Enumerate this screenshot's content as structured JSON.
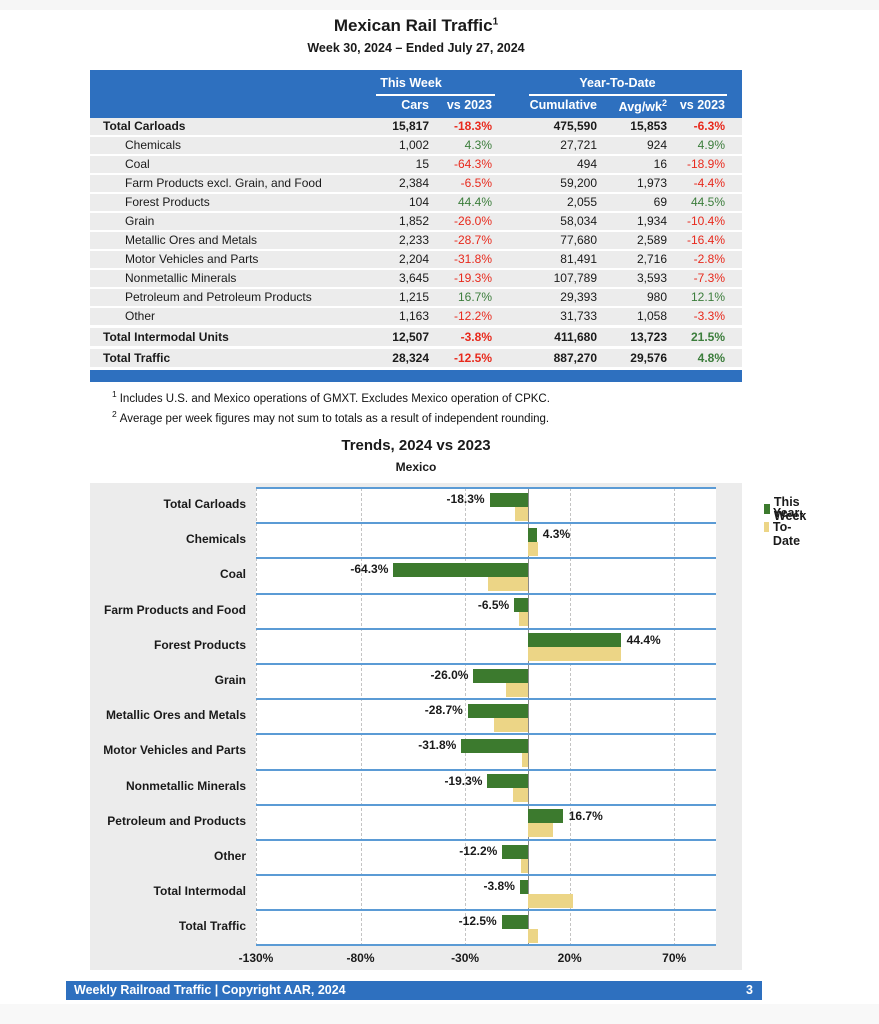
{
  "page": {
    "title": "Mexican Rail Traffic",
    "title_marker": "1",
    "subtitle": "Week 30, 2024 – Ended July 27, 2024"
  },
  "table": {
    "col_groups": {
      "this_week": "This Week",
      "ytd": "Year-To-Date"
    },
    "columns": [
      "Cars",
      "vs 2023",
      "Cumulative",
      "Avg/wk",
      "vs 2023"
    ],
    "avgwk_marker": "2",
    "rows": [
      {
        "label": "Total Carloads",
        "bold": true,
        "indent": false,
        "total": false,
        "cars": "15,817",
        "wk_pct": "-18.3%",
        "cum": "475,590",
        "avg": "15,853",
        "ytd_pct": "-6.3%"
      },
      {
        "label": "Chemicals",
        "bold": false,
        "indent": true,
        "total": false,
        "cars": "1,002",
        "wk_pct": "4.3%",
        "cum": "27,721",
        "avg": "924",
        "ytd_pct": "4.9%"
      },
      {
        "label": "Coal",
        "bold": false,
        "indent": true,
        "total": false,
        "cars": "15",
        "wk_pct": "-64.3%",
        "cum": "494",
        "avg": "16",
        "ytd_pct": "-18.9%"
      },
      {
        "label": "Farm Products excl. Grain, and Food",
        "bold": false,
        "indent": true,
        "total": false,
        "cars": "2,384",
        "wk_pct": "-6.5%",
        "cum": "59,200",
        "avg": "1,973",
        "ytd_pct": "-4.4%"
      },
      {
        "label": "Forest Products",
        "bold": false,
        "indent": true,
        "total": false,
        "cars": "104",
        "wk_pct": "44.4%",
        "cum": "2,055",
        "avg": "69",
        "ytd_pct": "44.5%"
      },
      {
        "label": "Grain",
        "bold": false,
        "indent": true,
        "total": false,
        "cars": "1,852",
        "wk_pct": "-26.0%",
        "cum": "58,034",
        "avg": "1,934",
        "ytd_pct": "-10.4%"
      },
      {
        "label": "Metallic Ores and Metals",
        "bold": false,
        "indent": true,
        "total": false,
        "cars": "2,233",
        "wk_pct": "-28.7%",
        "cum": "77,680",
        "avg": "2,589",
        "ytd_pct": "-16.4%"
      },
      {
        "label": "Motor Vehicles and Parts",
        "bold": false,
        "indent": true,
        "total": false,
        "cars": "2,204",
        "wk_pct": "-31.8%",
        "cum": "81,491",
        "avg": "2,716",
        "ytd_pct": "-2.8%"
      },
      {
        "label": "Nonmetallic Minerals",
        "bold": false,
        "indent": true,
        "total": false,
        "cars": "3,645",
        "wk_pct": "-19.3%",
        "cum": "107,789",
        "avg": "3,593",
        "ytd_pct": "-7.3%"
      },
      {
        "label": "Petroleum and Petroleum Products",
        "bold": false,
        "indent": true,
        "total": false,
        "cars": "1,215",
        "wk_pct": "16.7%",
        "cum": "29,393",
        "avg": "980",
        "ytd_pct": "12.1%"
      },
      {
        "label": "Other",
        "bold": false,
        "indent": true,
        "total": false,
        "cars": "1,163",
        "wk_pct": "-12.2%",
        "cum": "31,733",
        "avg": "1,058",
        "ytd_pct": "-3.3%"
      },
      {
        "label": "Total Intermodal Units",
        "bold": true,
        "indent": false,
        "total": true,
        "cars": "12,507",
        "wk_pct": "-3.8%",
        "cum": "411,680",
        "avg": "13,723",
        "ytd_pct": "21.5%"
      },
      {
        "label": "Total Traffic",
        "bold": true,
        "indent": false,
        "total": true,
        "cars": "28,324",
        "wk_pct": "-12.5%",
        "cum": "887,270",
        "avg": "29,576",
        "ytd_pct": "4.8%"
      }
    ]
  },
  "footnotes": [
    {
      "marker": "1",
      "text": "Includes U.S. and Mexico operations of GMXT. Excludes Mexico operation of CPKC."
    },
    {
      "marker": "2",
      "text": "Average per week figures may not sum to totals as a result of independent rounding."
    }
  ],
  "chart_data": {
    "type": "bar",
    "orientation": "horizontal",
    "title": "Trends, 2024 vs 2023",
    "subtitle": "Mexico",
    "categories": [
      "Total Carloads",
      "Chemicals",
      "Coal",
      "Farm Products and Food",
      "Forest Products",
      "Grain",
      "Metallic Ores and Metals",
      "Motor Vehicles and Parts",
      "Nonmetallic Minerals",
      "Petroleum and Products",
      "Other",
      "Total Intermodal",
      "Total Traffic"
    ],
    "series": [
      {
        "name": "This Week",
        "color": "#3c7a2e",
        "values": [
          -18.3,
          4.3,
          -64.3,
          -6.5,
          44.4,
          -26.0,
          -28.7,
          -31.8,
          -19.3,
          16.7,
          -12.2,
          -3.8,
          -12.5
        ]
      },
      {
        "name": "Year-To-Date",
        "color": "#ecd586",
        "values": [
          -6.3,
          4.9,
          -18.9,
          -4.4,
          44.5,
          -10.4,
          -16.4,
          -2.8,
          -7.3,
          12.1,
          -3.3,
          21.5,
          4.8
        ]
      }
    ],
    "bar_labels": [
      "-18.3%",
      "4.3%",
      "-64.3%",
      "-6.5%",
      "44.4%",
      "-26.0%",
      "-28.7%",
      "-31.8%",
      "-19.3%",
      "16.7%",
      "-12.2%",
      "-3.8%",
      "-12.5%"
    ],
    "x_ticks": [
      "-130%",
      "-80%",
      "-30%",
      "20%",
      "70%"
    ],
    "x_tick_values": [
      -130,
      -80,
      -30,
      20,
      70
    ],
    "xlim": [
      -130,
      90
    ],
    "grid": "vertical-dashed",
    "legend_position": "top-right"
  },
  "footer": {
    "left": "Weekly Railroad Traffic | Copyright AAR, 2024",
    "page_number": "3"
  },
  "colors": {
    "header_blue": "#2e70bf",
    "band_line_blue": "#5b9bd5",
    "row_gray": "#ececec",
    "negative_red": "#e8291c",
    "positive_green": "#3b7d3b",
    "bar_green": "#3c7a2e",
    "bar_tan": "#ecd586"
  }
}
